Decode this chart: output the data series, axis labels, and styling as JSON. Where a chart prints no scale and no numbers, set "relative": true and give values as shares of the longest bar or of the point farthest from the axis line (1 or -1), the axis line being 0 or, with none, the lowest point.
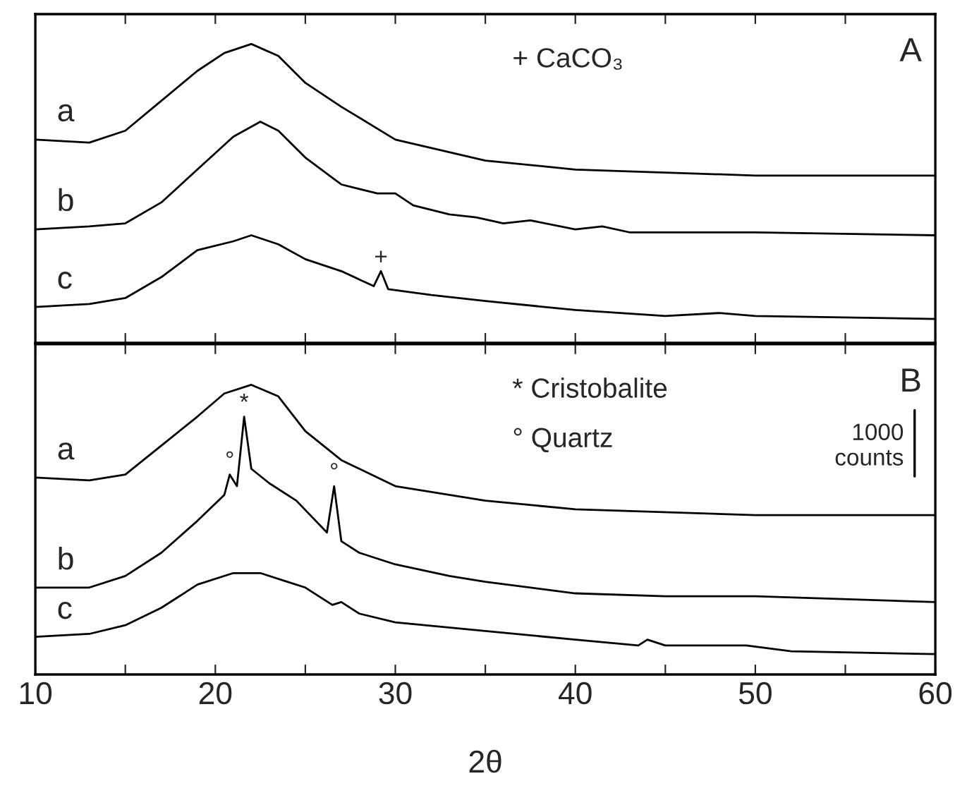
{
  "chart_data": [
    {
      "type": "line",
      "title": "A",
      "relative": true,
      "xlim": [
        10,
        60
      ],
      "tick_labels": false,
      "legend": false,
      "grid": false,
      "marker": "none",
      "line_style": "solid",
      "xticks": [
        10,
        {
          "value": 15,
          "label": null
        },
        20,
        {
          "value": 25,
          "label": null
        },
        30,
        {
          "value": 35,
          "label": null
        },
        40,
        {
          "value": 45,
          "label": null
        },
        50,
        {
          "value": 55,
          "label": null
        },
        60
      ],
      "series": [
        {
          "name": "a",
          "color": "#000000",
          "x": [
            10,
            13,
            15,
            17,
            19,
            20.5,
            22,
            23.5,
            25,
            27,
            30,
            35,
            40,
            45,
            50,
            60
          ],
          "values": [
            0.68,
            0.67,
            0.71,
            0.81,
            0.91,
            0.97,
            1,
            0.96,
            0.87,
            0.79,
            0.68,
            0.61,
            0.58,
            0.57,
            0.56,
            0.56
          ]
        },
        {
          "name": "b",
          "color": "#000000",
          "x": [
            10,
            13,
            15,
            17,
            19,
            21,
            22.5,
            23.5,
            25,
            27,
            29,
            30,
            31,
            33,
            34.5,
            36,
            37.5,
            40,
            41.5,
            43,
            47,
            50,
            60
          ],
          "values": [
            0.38,
            0.39,
            0.4,
            0.47,
            0.58,
            0.69,
            0.74,
            0.71,
            0.62,
            0.53,
            0.5,
            0.5,
            0.46,
            0.43,
            0.42,
            0.4,
            0.41,
            0.38,
            0.39,
            0.37,
            0.37,
            0.37,
            0.36
          ]
        },
        {
          "name": "c",
          "color": "#000000",
          "x": [
            10,
            13,
            15,
            17,
            19,
            21,
            22,
            23.5,
            25,
            27,
            28.8,
            29.2,
            29.6,
            32,
            35,
            40,
            45,
            48,
            50,
            60
          ],
          "values": [
            0.12,
            0.13,
            0.15,
            0.22,
            0.31,
            0.34,
            0.36,
            0.33,
            0.28,
            0.24,
            0.19,
            0.24,
            0.18,
            0.16,
            0.14,
            0.11,
            0.09,
            0.1,
            0.09,
            0.08
          ]
        }
      ],
      "annotations": [
        "+ CaCO₃",
        {
          "text": "+",
          "x": 29.2,
          "y": 0.24
        }
      ]
    },
    {
      "type": "line",
      "title": "B",
      "relative": true,
      "xlim": [
        10,
        60
      ],
      "tick_labels": "x",
      "xlabel": "2θ",
      "legend": false,
      "grid": false,
      "marker": "none",
      "line_style": "solid",
      "xticks": [
        10,
        {
          "value": 15,
          "label": null
        },
        20,
        {
          "value": 25,
          "label": null
        },
        30,
        {
          "value": 35,
          "label": null
        },
        40,
        {
          "value": 45,
          "label": null
        },
        50,
        {
          "value": 55,
          "label": null
        },
        60
      ],
      "series": [
        {
          "name": "a",
          "color": "#000000",
          "x": [
            10,
            13,
            15,
            17,
            19,
            20.5,
            22,
            23.5,
            25,
            27,
            30,
            35,
            40,
            50,
            60
          ],
          "values": [
            0.68,
            0.67,
            0.69,
            0.79,
            0.89,
            0.97,
            1,
            0.96,
            0.84,
            0.74,
            0.65,
            0.6,
            0.57,
            0.55,
            0.55
          ]
        },
        {
          "name": "b",
          "color": "#000000",
          "x": [
            10,
            13,
            15,
            17,
            19,
            20.5,
            20.8,
            21.2,
            21.6,
            22,
            23,
            24.5,
            26.2,
            26.6,
            27,
            28,
            30,
            33,
            35,
            40,
            45,
            50,
            60
          ],
          "values": [
            0.3,
            0.3,
            0.34,
            0.42,
            0.53,
            0.62,
            0.69,
            0.65,
            0.89,
            0.71,
            0.66,
            0.6,
            0.49,
            0.65,
            0.46,
            0.42,
            0.38,
            0.34,
            0.32,
            0.28,
            0.27,
            0.27,
            0.25
          ]
        },
        {
          "name": "c",
          "color": "#000000",
          "x": [
            10,
            13,
            15,
            17,
            19,
            21,
            22.5,
            24,
            25,
            26.5,
            27,
            28,
            30,
            35,
            40,
            43.5,
            44,
            45,
            49.5,
            52,
            60
          ],
          "values": [
            0.13,
            0.14,
            0.17,
            0.23,
            0.31,
            0.35,
            0.35,
            0.32,
            0.3,
            0.24,
            0.25,
            0.21,
            0.18,
            0.15,
            0.12,
            0.1,
            0.12,
            0.1,
            0.1,
            0.08,
            0.07
          ]
        }
      ],
      "annotations": [
        "* Cristobalite",
        "° Quartz",
        "1000 counts",
        {
          "text": "*",
          "x": 21.6,
          "y": 0.89
        },
        {
          "text": "°",
          "x": 20.8,
          "y": 0.69
        },
        {
          "text": "°",
          "x": 26.6,
          "y": 0.65
        }
      ]
    }
  ]
}
